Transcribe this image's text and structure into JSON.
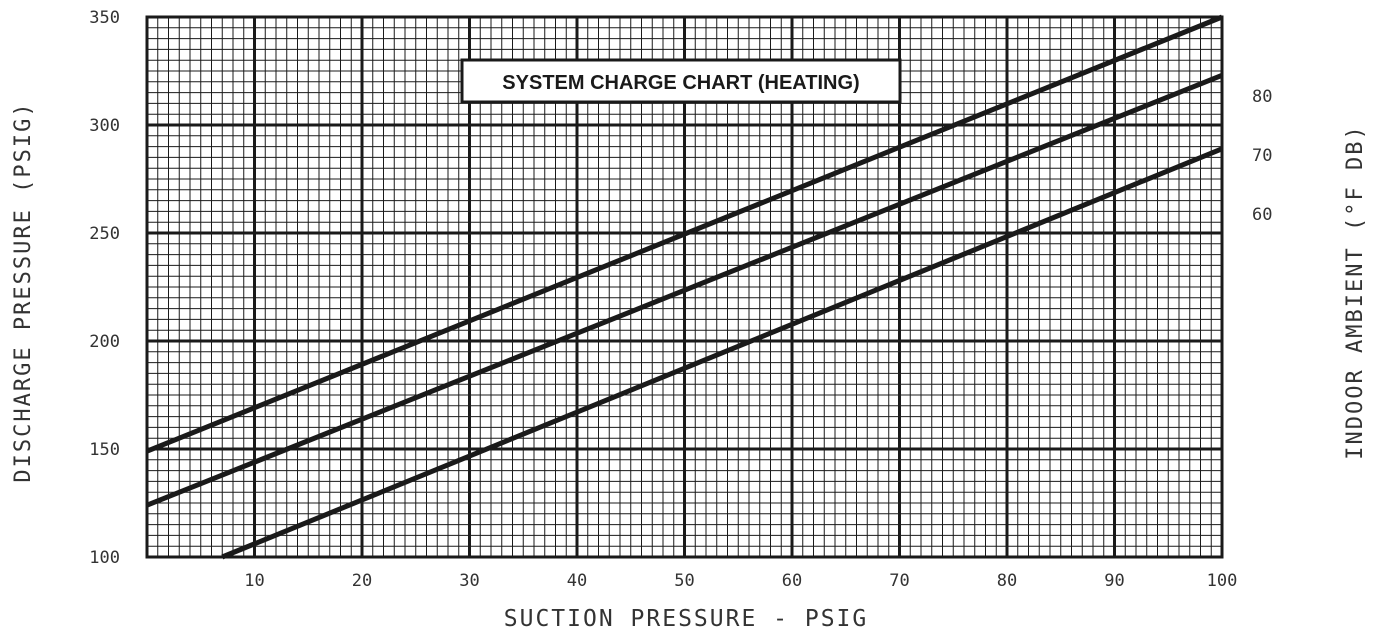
{
  "chart_data": {
    "type": "line",
    "title": "SYSTEM CHARGE CHART (HEATING)",
    "xlabel": "SUCTION PRESSURE - PSIG",
    "ylabel": "DISCHARGE PRESSURE (PSIG)",
    "y2label": "INDOOR AMBIENT (°F DB)",
    "xlim": [
      0,
      100
    ],
    "ylim": [
      100,
      350
    ],
    "grid": true,
    "x_tick_labels": [
      "10",
      "20",
      "30",
      "40",
      "50",
      "60",
      "70",
      "80",
      "90",
      "100"
    ],
    "y_tick_labels": [
      "100",
      "150",
      "200",
      "250",
      "300",
      "350"
    ],
    "series": [
      {
        "name": "80",
        "x": [
          0,
          100
        ],
        "y": [
          149,
          350
        ]
      },
      {
        "name": "70",
        "x": [
          0,
          100
        ],
        "y": [
          124,
          323
        ]
      },
      {
        "name": "60",
        "x": [
          7,
          100
        ],
        "y": [
          100,
          289
        ]
      }
    ],
    "colors": {
      "line": "#1a1a1a",
      "grid": "#1a1a1a",
      "background": "#ffffff"
    }
  }
}
